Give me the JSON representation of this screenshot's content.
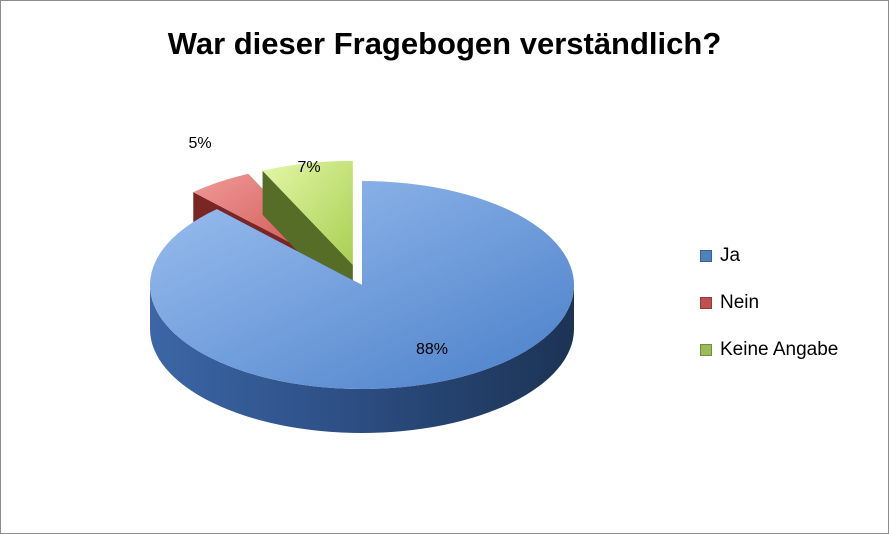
{
  "chart_data": {
    "type": "pie",
    "title": "War dieser Fragebogen verständlich?",
    "labels": [
      "Ja",
      "Nein",
      "Keine Angabe"
    ],
    "values": [
      88,
      5,
      7
    ],
    "data_labels": [
      "88%",
      "5%",
      "7%"
    ],
    "colors": {
      "Ja": "#4f81bd",
      "Nein": "#c0504d",
      "Keine Angabe": "#9bbb59"
    },
    "legend_position": "right",
    "exploded": [
      "Nein",
      "Keine Angabe"
    ],
    "style": "3d"
  }
}
